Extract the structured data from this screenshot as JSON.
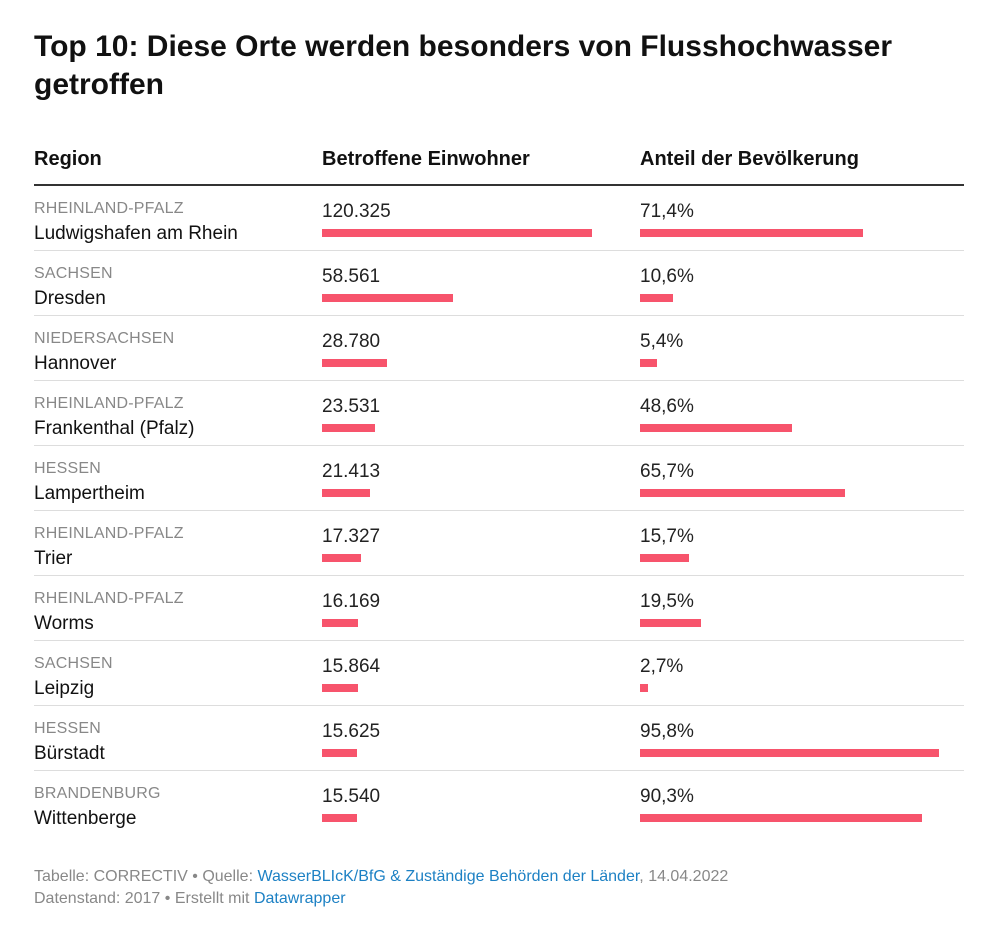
{
  "title": "Top 10: Diese Orte werden besonders von Flusshochwasser getroffen",
  "columns": {
    "region": "Region",
    "population": "Betroffene Einwohner",
    "share": "Anteil der Bevölkerung"
  },
  "colors": {
    "bar": "#f7546c",
    "link": "#1d81c4"
  },
  "chart_data": {
    "type": "table",
    "title": "Top 10: Diese Orte werden besonders von Flusshochwasser getroffen",
    "columns": [
      "Region",
      "Betroffene Einwohner",
      "Anteil der Bevölkerung"
    ],
    "rows": [
      {
        "state": "RHEINLAND-PFALZ",
        "place": "Ludwigshafen am Rhein",
        "population_label": "120.325",
        "population": 120325,
        "share_label": "71,4%",
        "share": 71.4
      },
      {
        "state": "SACHSEN",
        "place": "Dresden",
        "population_label": "58.561",
        "population": 58561,
        "share_label": "10,6%",
        "share": 10.6
      },
      {
        "state": "NIEDERSACHSEN",
        "place": "Hannover",
        "population_label": "28.780",
        "population": 28780,
        "share_label": "5,4%",
        "share": 5.4
      },
      {
        "state": "RHEINLAND-PFALZ",
        "place": "Frankenthal (Pfalz)",
        "population_label": "23.531",
        "population": 23531,
        "share_label": "48,6%",
        "share": 48.6
      },
      {
        "state": "HESSEN",
        "place": "Lampertheim",
        "population_label": "21.413",
        "population": 21413,
        "share_label": "65,7%",
        "share": 65.7
      },
      {
        "state": "RHEINLAND-PFALZ",
        "place": "Trier",
        "population_label": "17.327",
        "population": 17327,
        "share_label": "15,7%",
        "share": 15.7
      },
      {
        "state": "RHEINLAND-PFALZ",
        "place": "Worms",
        "population_label": "16.169",
        "population": 16169,
        "share_label": "19,5%",
        "share": 19.5
      },
      {
        "state": "SACHSEN",
        "place": "Leipzig",
        "population_label": "15.864",
        "population": 15864,
        "share_label": "2,7%",
        "share": 2.7
      },
      {
        "state": "HESSEN",
        "place": "Bürstadt",
        "population_label": "15.625",
        "population": 15625,
        "share_label": "95,8%",
        "share": 95.8
      },
      {
        "state": "BRANDENBURG",
        "place": "Wittenberge",
        "population_label": "15.540",
        "population": 15540,
        "share_label": "90,3%",
        "share": 90.3
      }
    ]
  },
  "footer": {
    "prefix": "Tabelle: CORRECTIV • Quelle: ",
    "source_link": "WasserBLIcK/BfG & Zuständige Behörden der Länder",
    "date": ", 14.04.2022",
    "line2_prefix": "Datenstand: 2017 • Erstellt mit ",
    "tool_link": "Datawrapper"
  }
}
